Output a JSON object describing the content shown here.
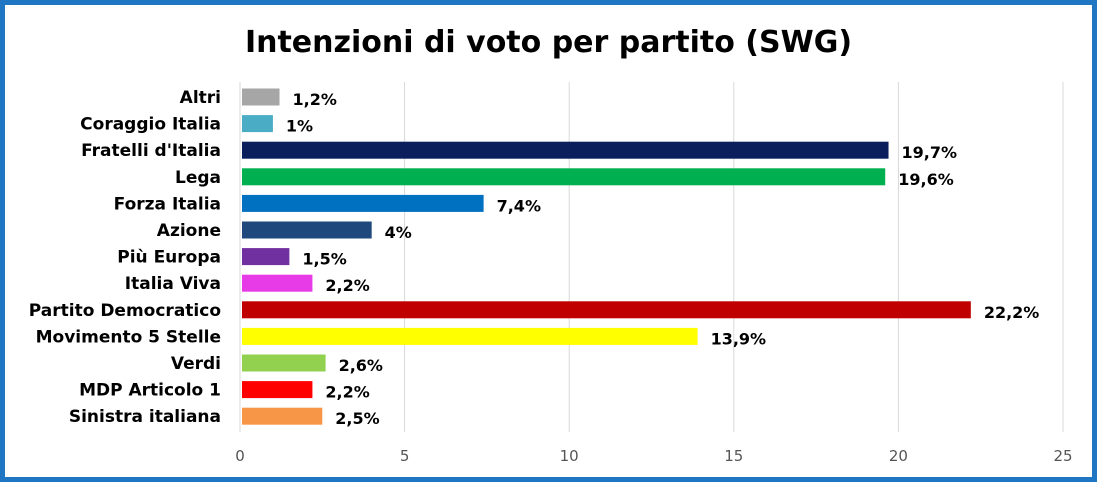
{
  "chart_data": {
    "type": "bar",
    "orientation": "horizontal",
    "title": "Intenzioni di voto per partito (SWG)",
    "categories": [
      "Altri",
      "Coraggio Italia",
      "Fratelli d'Italia",
      "Lega",
      "Forza Italia",
      "Azione",
      "Più Europa",
      "Italia Viva",
      "Partito Democratico",
      "Movimento 5 Stelle",
      "Verdi",
      "MDP Articolo 1",
      "Sinistra italiana"
    ],
    "values": [
      1.2,
      1,
      19.7,
      19.6,
      7.4,
      4,
      1.5,
      2.2,
      22.2,
      13.9,
      2.6,
      2.2,
      2.5
    ],
    "value_labels": [
      "1,2%",
      "1%",
      "19,7%",
      "19,6%",
      "7,4%",
      "4%",
      "1,5%",
      "2,2%",
      "22,2%",
      "13,9%",
      "2,6%",
      "2,2%",
      "2,5%"
    ],
    "colors": [
      "#a6a6a6",
      "#4bacc6",
      "#0b1f5c",
      "#00b050",
      "#0070c0",
      "#1f497d",
      "#7030a0",
      "#e63be6",
      "#c00000",
      "#ffff00",
      "#92d050",
      "#ff0000",
      "#f79646"
    ],
    "xlim": [
      0,
      25
    ],
    "xticks": [
      "0",
      "5",
      "10",
      "15",
      "20",
      "25"
    ],
    "grid": true,
    "legend": "none",
    "frame_color": "#1f77c3"
  }
}
